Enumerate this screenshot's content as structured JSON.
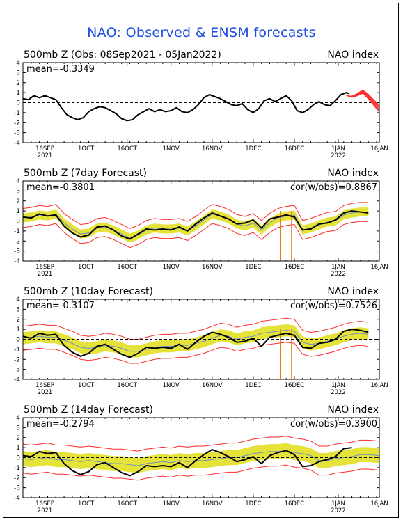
{
  "title": "NAO: Observed & ENSM forecasts",
  "colors": {
    "title": "#1f4fe0",
    "observed": "#000000",
    "spread": "#e5e23a",
    "envelope": "#ff2a2a",
    "ensmean": "#6d8fc4",
    "spike": "#e87a10",
    "forecast": "#ff3030"
  },
  "chart_data": [
    {
      "type": "line",
      "title": "500mb Z (Obs: 08Sep2021 - 05Jan2022)",
      "right_title": "NAO index",
      "mean_label": "mean=-0.3349",
      "cor_label": "",
      "ylim": [
        -4,
        4
      ],
      "yticks": [
        "4",
        "3",
        "2",
        "1",
        "0",
        "-1",
        "-2",
        "-3",
        "-4"
      ],
      "xlim": [
        0,
        130
      ],
      "xticks": [
        {
          "x": 8,
          "label": "16SEP",
          "sub": "2021"
        },
        {
          "x": 23,
          "label": "1OCT",
          "sub": ""
        },
        {
          "x": 38,
          "label": "16OCT",
          "sub": ""
        },
        {
          "x": 54,
          "label": "1NOV",
          "sub": ""
        },
        {
          "x": 69,
          "label": "16NOV",
          "sub": ""
        },
        {
          "x": 84,
          "label": "1DEC",
          "sub": ""
        },
        {
          "x": 99,
          "label": "16DEC",
          "sub": ""
        },
        {
          "x": 115,
          "label": "1JAN",
          "sub": "2022"
        },
        {
          "x": 130,
          "label": "16JAN",
          "sub": ""
        }
      ],
      "series": [
        {
          "role": "observed",
          "x": [
            0,
            2,
            4,
            6,
            8,
            10,
            12,
            14,
            16,
            18,
            20,
            22,
            24,
            26,
            28,
            30,
            32,
            34,
            36,
            38,
            40,
            42,
            44,
            46,
            48,
            50,
            52,
            54,
            56,
            58,
            60,
            62,
            64,
            66,
            68,
            70,
            72,
            74,
            76,
            78,
            80,
            82,
            84,
            86,
            88,
            90,
            92,
            94,
            96,
            98,
            100,
            102,
            104,
            106,
            108,
            110,
            112,
            114,
            116,
            118,
            119
          ],
          "y": [
            0.4,
            0.3,
            0.7,
            0.5,
            0.7,
            0.5,
            0.3,
            -0.5,
            -1.2,
            -1.5,
            -1.7,
            -1.5,
            -0.9,
            -0.6,
            -0.4,
            -0.5,
            -0.8,
            -1.1,
            -1.6,
            -1.8,
            -1.7,
            -1.2,
            -0.9,
            -0.6,
            -0.9,
            -0.7,
            -0.9,
            -0.8,
            -0.5,
            -0.9,
            -1.0,
            -0.7,
            -0.2,
            0.5,
            0.8,
            0.6,
            0.4,
            0.1,
            -0.2,
            -0.3,
            -0.1,
            -0.7,
            -1.0,
            -0.6,
            0.2,
            0.4,
            0.1,
            0.4,
            0.7,
            0.2,
            -0.8,
            -1.0,
            -0.7,
            -0.2,
            0.1,
            -0.2,
            -0.3,
            0.2,
            0.8,
            1.0,
            0.9
          ]
        },
        {
          "role": "forecast",
          "x": [
            118,
            120,
            122,
            124,
            126,
            128,
            130
          ],
          "y": [
            0.7,
            0.6,
            0.8,
            1.1,
            0.6,
            0.0,
            -0.6
          ],
          "spread": 0.35
        }
      ]
    },
    {
      "type": "line",
      "title": "500mb Z (7day Forecast)",
      "right_title": "NAO index",
      "mean_label": "mean=-0.3801",
      "cor_label": "cor(w/obs)=0.8867",
      "ylim": [
        -4,
        4
      ],
      "yticks": [
        "4",
        "3",
        "2",
        "1",
        "0",
        "-1",
        "-2",
        "-3",
        "-4"
      ],
      "xlim": [
        0,
        130
      ],
      "xticks": [
        {
          "x": 8,
          "label": "16SEP",
          "sub": "2021"
        },
        {
          "x": 23,
          "label": "1OCT",
          "sub": ""
        },
        {
          "x": 38,
          "label": "16OCT",
          "sub": ""
        },
        {
          "x": 54,
          "label": "1NOV",
          "sub": ""
        },
        {
          "x": 69,
          "label": "16NOV",
          "sub": ""
        },
        {
          "x": 84,
          "label": "1DEC",
          "sub": ""
        },
        {
          "x": 99,
          "label": "16DEC",
          "sub": ""
        },
        {
          "x": 115,
          "label": "1JAN",
          "sub": "2022"
        },
        {
          "x": 130,
          "label": "16JAN",
          "sub": ""
        }
      ],
      "band": {
        "x": [
          0,
          3,
          6,
          9,
          12,
          15,
          18,
          21,
          24,
          27,
          30,
          33,
          36,
          39,
          42,
          45,
          48,
          51,
          54,
          57,
          60,
          63,
          66,
          69,
          72,
          75,
          78,
          81,
          84,
          87,
          90,
          93,
          96,
          99,
          102,
          105,
          108,
          111,
          114,
          117,
          120,
          123,
          126
        ],
        "mean": [
          0.3,
          0.4,
          0.6,
          0.5,
          0.7,
          -0.2,
          -0.8,
          -1.3,
          -1.2,
          -0.7,
          -0.6,
          -0.9,
          -1.3,
          -1.7,
          -1.4,
          -0.9,
          -0.7,
          -0.8,
          -0.8,
          -0.7,
          -1.0,
          -0.5,
          0.1,
          0.7,
          0.5,
          0.2,
          -0.3,
          -0.5,
          -0.2,
          -0.9,
          -0.2,
          0.3,
          0.5,
          0.6,
          -0.9,
          -0.7,
          -0.4,
          -0.1,
          0.0,
          0.6,
          0.8,
          0.9,
          0.9
        ],
        "spread_inner": 0.45,
        "spread_outer": 0.95
      },
      "spikes": [
        {
          "x": 94,
          "y": -4.0
        },
        {
          "x": 98,
          "y": -4.0
        }
      ],
      "series": [
        {
          "role": "observed",
          "x": [
            0,
            3,
            6,
            9,
            12,
            15,
            18,
            21,
            24,
            27,
            30,
            33,
            36,
            39,
            42,
            45,
            48,
            51,
            54,
            57,
            60,
            63,
            66,
            69,
            72,
            75,
            78,
            81,
            84,
            87,
            90,
            93,
            96,
            99,
            102,
            105,
            108,
            111,
            114,
            117,
            120,
            123,
            126
          ],
          "y": [
            0.4,
            0.3,
            0.7,
            0.5,
            0.6,
            -0.5,
            -1.2,
            -1.6,
            -1.4,
            -0.6,
            -0.5,
            -0.9,
            -1.5,
            -1.8,
            -1.3,
            -0.8,
            -0.9,
            -0.8,
            -0.9,
            -0.6,
            -1.0,
            -0.3,
            0.3,
            0.8,
            0.5,
            0.2,
            -0.3,
            -0.2,
            0.1,
            -0.7,
            0.2,
            0.4,
            0.6,
            0.4,
            -0.9,
            -0.8,
            -0.3,
            -0.2,
            0.1,
            0.8,
            1.0,
            0.9,
            0.8
          ]
        }
      ]
    },
    {
      "type": "line",
      "title": "500mb Z (10day Forecast)",
      "right_title": "NAO index",
      "mean_label": "mean=-0.3107",
      "cor_label": "cor(w/obs)=0.7526",
      "ylim": [
        -4,
        4
      ],
      "yticks": [
        "4",
        "3",
        "2",
        "1",
        "0",
        "-1",
        "-2",
        "-3",
        "-4"
      ],
      "xlim": [
        0,
        130
      ],
      "xticks": [
        {
          "x": 8,
          "label": "16SEP",
          "sub": "2021"
        },
        {
          "x": 23,
          "label": "1OCT",
          "sub": ""
        },
        {
          "x": 38,
          "label": "16OCT",
          "sub": ""
        },
        {
          "x": 54,
          "label": "1NOV",
          "sub": ""
        },
        {
          "x": 69,
          "label": "16NOV",
          "sub": ""
        },
        {
          "x": 84,
          "label": "1DEC",
          "sub": ""
        },
        {
          "x": 99,
          "label": "16DEC",
          "sub": ""
        },
        {
          "x": 115,
          "label": "1JAN",
          "sub": "2022"
        },
        {
          "x": 130,
          "label": "16JAN",
          "sub": ""
        }
      ],
      "band": {
        "x": [
          0,
          3,
          6,
          9,
          12,
          15,
          18,
          21,
          24,
          27,
          30,
          33,
          36,
          39,
          42,
          45,
          48,
          51,
          54,
          57,
          60,
          63,
          66,
          69,
          72,
          75,
          78,
          81,
          84,
          87,
          90,
          93,
          96,
          99,
          102,
          105,
          108,
          111,
          114,
          117,
          120,
          123,
          126
        ],
        "mean": [
          0.1,
          0.2,
          0.3,
          0.2,
          0.2,
          -0.1,
          -0.4,
          -0.8,
          -0.9,
          -0.8,
          -0.6,
          -0.7,
          -0.9,
          -1.2,
          -1.2,
          -1.0,
          -0.8,
          -0.7,
          -0.7,
          -0.6,
          -0.6,
          -0.4,
          -0.2,
          0.1,
          0.4,
          0.3,
          0.0,
          0.2,
          0.3,
          0.6,
          0.7,
          0.8,
          0.9,
          0.8,
          -0.3,
          -0.5,
          -0.4,
          -0.2,
          0.0,
          0.3,
          0.5,
          0.6,
          0.5
        ],
        "spread_inner": 0.6,
        "spread_outer": 1.2
      },
      "spikes": [
        {
          "x": 94,
          "y": -4.0
        },
        {
          "x": 98,
          "y": -4.0
        }
      ],
      "series": [
        {
          "role": "observed",
          "x": [
            0,
            3,
            6,
            9,
            12,
            15,
            18,
            21,
            24,
            27,
            30,
            33,
            36,
            39,
            42,
            45,
            48,
            51,
            54,
            57,
            60,
            63,
            66,
            69,
            72,
            75,
            78,
            81,
            84,
            87,
            90,
            93,
            96,
            99,
            102,
            105,
            108,
            111,
            114,
            117,
            120,
            123,
            126
          ],
          "y": [
            0.3,
            0.1,
            0.6,
            0.4,
            0.5,
            -0.6,
            -1.3,
            -1.7,
            -1.4,
            -0.7,
            -0.5,
            -1.0,
            -1.5,
            -1.8,
            -1.4,
            -0.8,
            -0.9,
            -0.8,
            -0.9,
            -0.5,
            -1.0,
            -0.3,
            0.3,
            0.7,
            0.5,
            0.2,
            -0.3,
            -0.2,
            0.1,
            -0.7,
            0.2,
            0.4,
            0.6,
            0.4,
            -0.8,
            -0.9,
            -0.4,
            -0.3,
            0.0,
            0.8,
            1.0,
            0.9,
            0.7
          ]
        }
      ]
    },
    {
      "type": "line",
      "title": "500mb Z (14day Forecast)",
      "right_title": "NAO index",
      "mean_label": "mean=-0.2794",
      "cor_label": "cor(w/obs)=0.3900",
      "ylim": [
        -4,
        4
      ],
      "yticks": [
        "4",
        "3",
        "2",
        "1",
        "0",
        "-1",
        "-2",
        "-3",
        "-4"
      ],
      "xlim": [
        0,
        130
      ],
      "xticks": [
        {
          "x": 8,
          "label": "16SEP",
          "sub": "2021"
        },
        {
          "x": 23,
          "label": "1OCT",
          "sub": ""
        },
        {
          "x": 38,
          "label": "16OCT",
          "sub": ""
        },
        {
          "x": 54,
          "label": "1NOV",
          "sub": ""
        },
        {
          "x": 69,
          "label": "16NOV",
          "sub": ""
        },
        {
          "x": 84,
          "label": "1DEC",
          "sub": ""
        },
        {
          "x": 99,
          "label": "16DEC",
          "sub": ""
        },
        {
          "x": 115,
          "label": "1JAN",
          "sub": "2022"
        },
        {
          "x": 130,
          "label": "16JAN",
          "sub": ""
        }
      ],
      "band": {
        "x": [
          0,
          3,
          6,
          9,
          12,
          15,
          18,
          21,
          24,
          27,
          30,
          33,
          36,
          39,
          42,
          45,
          48,
          51,
          54,
          57,
          60,
          63,
          66,
          69,
          72,
          75,
          78,
          81,
          84,
          87,
          90,
          93,
          96,
          99,
          102,
          105,
          108,
          111,
          114,
          117,
          120,
          123,
          126,
          130
        ],
        "mean": [
          -0.1,
          -0.2,
          -0.1,
          0.0,
          -0.2,
          -0.2,
          -0.3,
          -0.4,
          -0.3,
          -0.4,
          -0.5,
          -0.6,
          -0.6,
          -0.7,
          -0.8,
          -0.6,
          -0.5,
          -0.4,
          -0.5,
          -0.3,
          -0.4,
          -0.3,
          -0.3,
          -0.2,
          -0.1,
          0.0,
          0.0,
          0.2,
          0.4,
          0.5,
          0.6,
          0.6,
          0.7,
          0.5,
          0.4,
          0.2,
          -0.3,
          -0.3,
          -0.1,
          0.0,
          0.1,
          0.3,
          0.3,
          0.2
        ],
        "spread_inner": 0.75,
        "spread_outer": 1.45
      },
      "spikes": [],
      "series": [
        {
          "role": "observed",
          "x": [
            0,
            3,
            6,
            9,
            12,
            15,
            18,
            21,
            24,
            27,
            30,
            33,
            36,
            39,
            42,
            45,
            48,
            51,
            54,
            57,
            60,
            63,
            66,
            69,
            72,
            75,
            78,
            81,
            84,
            87,
            90,
            93,
            96,
            99,
            102,
            105,
            108,
            111,
            114,
            117,
            120
          ],
          "y": [
            0.2,
            0.1,
            0.6,
            0.4,
            0.5,
            -0.6,
            -1.3,
            -1.7,
            -1.4,
            -0.7,
            -0.5,
            -1.0,
            -1.5,
            -1.8,
            -1.4,
            -0.8,
            -0.9,
            -0.8,
            -0.9,
            -0.5,
            -1.0,
            -0.3,
            0.3,
            0.8,
            0.5,
            0.1,
            -0.4,
            -0.2,
            0.1,
            -0.6,
            0.2,
            0.5,
            0.7,
            0.3,
            -0.9,
            -0.8,
            -0.4,
            -0.2,
            0.1,
            0.9,
            1.0
          ]
        }
      ]
    }
  ]
}
